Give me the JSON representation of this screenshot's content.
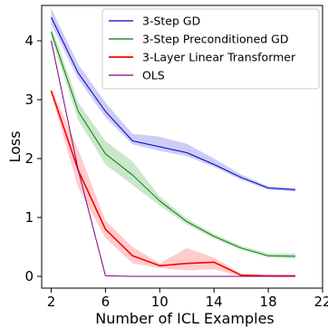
{
  "chart_data": {
    "type": "line",
    "title": "",
    "xlabel": "Number of ICL Examples",
    "ylabel": "Loss",
    "xlim": [
      1.3,
      22
    ],
    "ylim": [
      -0.2,
      4.6
    ],
    "x_ticks": [
      2,
      6,
      10,
      14,
      18,
      22
    ],
    "y_ticks": [
      0,
      1,
      2,
      3,
      4
    ],
    "grid": false,
    "legend_position": "top-right",
    "series": [
      {
        "name": "3-Step GD",
        "color": "#0000cc",
        "x": [
          2,
          4,
          6,
          8,
          10,
          12,
          14,
          16,
          18,
          20
        ],
        "y": [
          4.4,
          3.45,
          2.8,
          2.3,
          2.2,
          2.1,
          1.9,
          1.68,
          1.5,
          1.47
        ],
        "lower": [
          4.28,
          3.35,
          2.7,
          2.24,
          2.13,
          2.04,
          1.86,
          1.64,
          1.47,
          1.44
        ],
        "upper": [
          4.55,
          3.6,
          2.95,
          2.42,
          2.37,
          2.25,
          2.0,
          1.73,
          1.53,
          1.5
        ]
      },
      {
        "name": "3-Step Preconditioned GD",
        "color": "#008000",
        "x": [
          2,
          4,
          6,
          8,
          10,
          12,
          14,
          16,
          18,
          20
        ],
        "y": [
          4.15,
          2.8,
          2.08,
          1.72,
          1.28,
          0.93,
          0.68,
          0.48,
          0.35,
          0.34
        ],
        "lower": [
          4.05,
          2.65,
          1.9,
          1.55,
          1.2,
          0.88,
          0.64,
          0.45,
          0.32,
          0.3
        ],
        "upper": [
          4.25,
          2.95,
          2.3,
          1.95,
          1.36,
          0.98,
          0.72,
          0.52,
          0.39,
          0.39
        ]
      },
      {
        "name": "3-Layer Linear Transformer",
        "color": "#ff0000",
        "x": [
          2,
          4,
          6,
          8,
          10,
          12,
          14,
          16,
          18,
          20
        ],
        "y": [
          3.15,
          1.8,
          0.8,
          0.35,
          0.18,
          0.22,
          0.24,
          0.02,
          0.01,
          0.01
        ],
        "lower": [
          3.1,
          1.5,
          0.65,
          0.22,
          0.14,
          0.1,
          0.12,
          0.0,
          0.0,
          0.0
        ],
        "upper": [
          3.2,
          2.15,
          0.95,
          0.5,
          0.22,
          0.48,
          0.32,
          0.04,
          0.02,
          0.02
        ]
      },
      {
        "name": "OLS",
        "color": "#800080",
        "x": [
          2,
          4,
          6,
          8,
          10,
          12,
          14,
          16,
          18,
          20
        ],
        "y": [
          4.0,
          1.8,
          0.01,
          0.0,
          0.0,
          0.0,
          0.0,
          0.0,
          0.0,
          0.0
        ]
      }
    ]
  }
}
